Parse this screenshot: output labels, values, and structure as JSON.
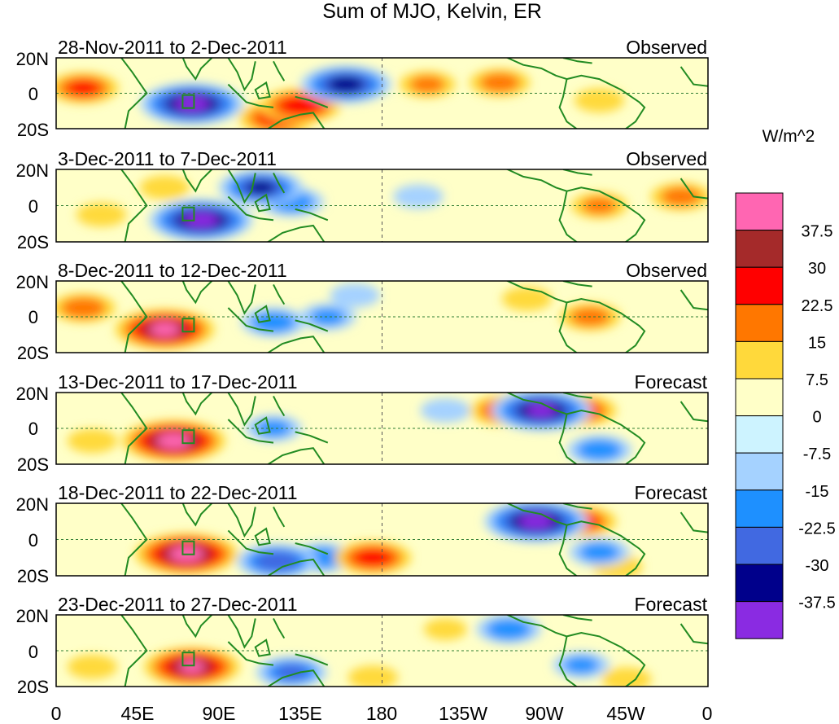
{
  "chart_data": {
    "type": "heatmap",
    "title": "Sum of MJO, Kelvin, ER",
    "colorbar_units": "W/m^2",
    "lat_ticks": [
      "20N",
      "0",
      "20S"
    ],
    "lon_ticks": [
      "0",
      "45E",
      "90E",
      "135E",
      "180",
      "135W",
      "90W",
      "45W",
      "0"
    ],
    "lon_range_deg": [
      0,
      360
    ],
    "lat_range_deg": [
      -20,
      20
    ],
    "colorbar": {
      "labels": [
        "37.5",
        "30",
        "22.5",
        "15",
        "7.5",
        "0",
        "-7.5",
        "-15",
        "-22.5",
        "-30",
        "-37.5"
      ],
      "colors": [
        "#ff66b2",
        "#a52a2a",
        "#ff0000",
        "#ff7700",
        "#ffd93b",
        "#ffffc8",
        "#cdf3ff",
        "#a5d2ff",
        "#1e90ff",
        "#4169e1",
        "#00008b",
        "#8a2be2"
      ]
    },
    "panels": [
      {
        "date_range": "28-Nov-2011 to 2-Dec-2011",
        "kind": "Observed",
        "anomalies": [
          {
            "lon": 75,
            "lat": -6,
            "value": -42
          },
          {
            "lon": 135,
            "lat": -7,
            "value": 30
          },
          {
            "lon": 15,
            "lat": 3,
            "value": 25
          },
          {
            "lon": 160,
            "lat": 5,
            "value": -35
          },
          {
            "lon": 122,
            "lat": -14,
            "value": 28
          },
          {
            "lon": 205,
            "lat": 5,
            "value": 18
          },
          {
            "lon": 245,
            "lat": 6,
            "value": 20
          },
          {
            "lon": 300,
            "lat": -4,
            "value": 15
          }
        ]
      },
      {
        "date_range": "3-Dec-2011 to 7-Dec-2011",
        "kind": "Observed",
        "anomalies": [
          {
            "lon": 80,
            "lat": -8,
            "value": -42
          },
          {
            "lon": 113,
            "lat": 10,
            "value": -32
          },
          {
            "lon": 130,
            "lat": 2,
            "value": -22
          },
          {
            "lon": 60,
            "lat": 10,
            "value": 15
          },
          {
            "lon": 25,
            "lat": -5,
            "value": 15
          },
          {
            "lon": 300,
            "lat": 0,
            "value": 18
          },
          {
            "lon": 345,
            "lat": 5,
            "value": 20
          },
          {
            "lon": 200,
            "lat": 5,
            "value": -15
          }
        ]
      },
      {
        "date_range": "8-Dec-2011 to 12-Dec-2011",
        "kind": "Observed",
        "anomalies": [
          {
            "lon": 60,
            "lat": -7,
            "value": 40
          },
          {
            "lon": 120,
            "lat": -3,
            "value": -22
          },
          {
            "lon": 15,
            "lat": 5,
            "value": 22
          },
          {
            "lon": 150,
            "lat": 0,
            "value": -18
          },
          {
            "lon": 295,
            "lat": 0,
            "value": 20
          },
          {
            "lon": 260,
            "lat": 10,
            "value": 15
          },
          {
            "lon": 165,
            "lat": 12,
            "value": -15
          }
        ]
      },
      {
        "date_range": "13-Dec-2011 to 17-Dec-2011",
        "kind": "Forecast",
        "anomalies": [
          {
            "lon": 65,
            "lat": -7,
            "value": 42
          },
          {
            "lon": 268,
            "lat": 10,
            "value": -40
          },
          {
            "lon": 248,
            "lat": 10,
            "value": 25
          },
          {
            "lon": 290,
            "lat": 10,
            "value": 25
          },
          {
            "lon": 120,
            "lat": 0,
            "value": -18
          },
          {
            "lon": 300,
            "lat": -12,
            "value": -22
          },
          {
            "lon": 215,
            "lat": 10,
            "value": -15
          },
          {
            "lon": 20,
            "lat": -7,
            "value": 15
          }
        ]
      },
      {
        "date_range": "18-Dec-2011 to 22-Dec-2011",
        "kind": "Forecast",
        "anomalies": [
          {
            "lon": 72,
            "lat": -8,
            "value": 42
          },
          {
            "lon": 265,
            "lat": 10,
            "value": -42
          },
          {
            "lon": 122,
            "lat": -12,
            "value": -30
          },
          {
            "lon": 147,
            "lat": -10,
            "value": -22
          },
          {
            "lon": 175,
            "lat": -10,
            "value": 28
          },
          {
            "lon": 290,
            "lat": 10,
            "value": 25
          },
          {
            "lon": 310,
            "lat": -15,
            "value": 15
          },
          {
            "lon": 300,
            "lat": -7,
            "value": -20
          }
        ]
      },
      {
        "date_range": "23-Dec-2011 to 27-Dec-2011",
        "kind": "Forecast",
        "anomalies": [
          {
            "lon": 75,
            "lat": -9,
            "value": 38
          },
          {
            "lon": 130,
            "lat": -12,
            "value": -25
          },
          {
            "lon": 250,
            "lat": 12,
            "value": -22
          },
          {
            "lon": 290,
            "lat": -8,
            "value": -18
          },
          {
            "lon": 315,
            "lat": -16,
            "value": 15
          },
          {
            "lon": 20,
            "lat": -9,
            "value": 15
          },
          {
            "lon": 175,
            "lat": -15,
            "value": 15
          },
          {
            "lon": 215,
            "lat": 12,
            "value": 12
          }
        ]
      }
    ]
  }
}
